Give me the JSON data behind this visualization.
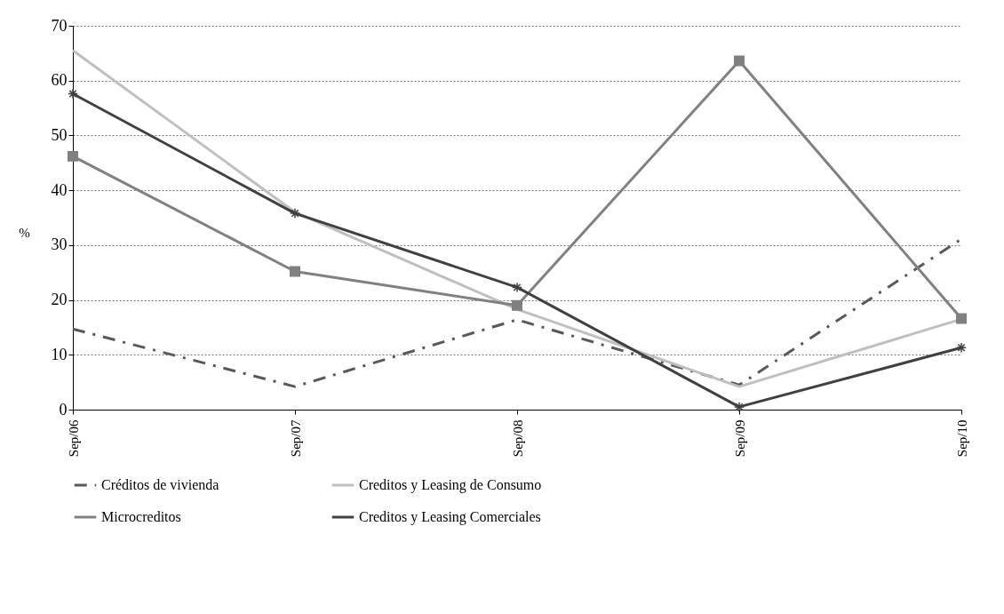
{
  "chart_data": {
    "type": "line",
    "ylabel": "%",
    "categories": [
      "Sep/06",
      "Sep/07",
      "Sep/08",
      "Sep/09",
      "Sep/10"
    ],
    "ylim": [
      0,
      70
    ],
    "yticks": [
      0,
      10,
      20,
      30,
      40,
      50,
      60,
      70
    ],
    "grid": "y",
    "legend": "bottom",
    "series": [
      {
        "name": "Créditos de vivienda",
        "color": "#595959",
        "line_style": "dashed",
        "marker": "none",
        "values": [
          14.7,
          4.2,
          16.4,
          4.5,
          31.1
        ]
      },
      {
        "name": "Creditos y Leasing de Consumo",
        "color": "#bfbfbf",
        "line_style": "solid",
        "marker": "none",
        "values": [
          65.5,
          36.0,
          18.3,
          4.2,
          16.5
        ]
      },
      {
        "name": "Microcreditos",
        "color": "#808080",
        "line_style": "solid",
        "marker": "square",
        "values": [
          46.2,
          25.2,
          19.0,
          63.6,
          16.6
        ]
      },
      {
        "name": "Creditos y Leasing Comerciales",
        "color": "#404040",
        "line_style": "solid",
        "marker": "cross",
        "values": [
          57.6,
          35.8,
          22.3,
          0.5,
          11.3
        ]
      }
    ]
  }
}
